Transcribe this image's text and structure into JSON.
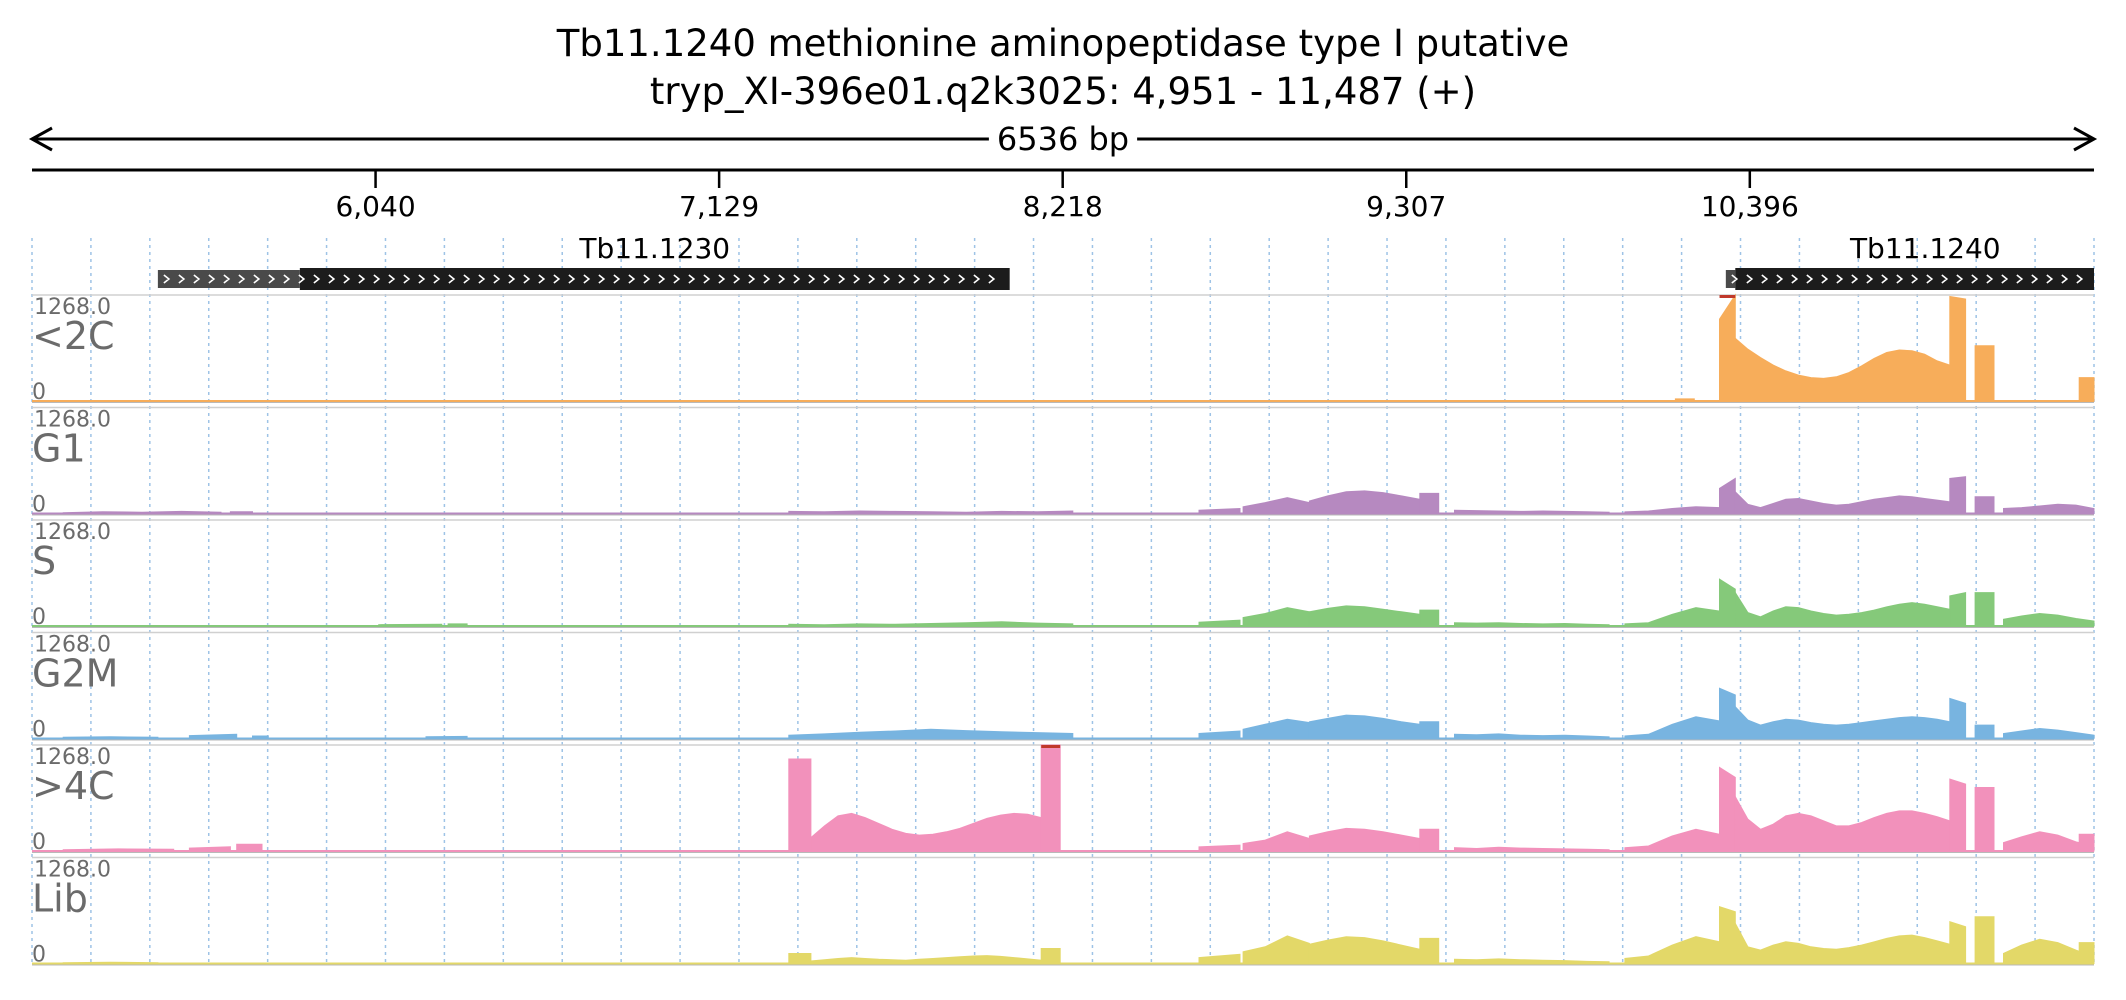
{
  "title": "Tb11.1240  methionine aminopeptidase  type I  putative",
  "subtitle": "tryp_XI-396e01.q2k3025: 4,951 - 11,487 (+)",
  "span_label": "6536 bp",
  "chart_data": {
    "type": "area",
    "x_range": [
      4951,
      11487
    ],
    "x_ticks": [
      6040,
      7129,
      8218,
      9307,
      10396
    ],
    "x_tick_labels": [
      "6,040",
      "7,129",
      "8,218",
      "9,307",
      "10,396"
    ],
    "y_range": [
      0,
      1268.0
    ],
    "y_max_label": "1268.0",
    "y_min_label": "0",
    "genes": [
      {
        "name": "Tb11.1230",
        "utr_start": 5350,
        "start": 5800,
        "end": 8050
      },
      {
        "name": "Tb11.1240",
        "utr_start": 10320,
        "start": 10350,
        "end": 11487
      }
    ],
    "tracks": [
      {
        "name": "<2C",
        "color": "#f7ad5a",
        "segments": [
          {
            "x0": 10160,
            "x1": 10220,
            "values": [
              25
            ]
          },
          {
            "x0": 10300,
            "x1": 10350,
            "values": [
              980,
              1268
            ]
          },
          {
            "x0": 10350,
            "x1": 11030,
            "values": [
              750,
              620,
              520,
              430,
              360,
              310,
              280,
              270,
              290,
              340,
              420,
              510,
              580,
              610,
              600,
              560,
              480,
              430
            ]
          },
          {
            "x0": 11030,
            "x1": 11080,
            "values": [
              1250,
              1220
            ]
          },
          {
            "x0": 11110,
            "x1": 11170,
            "values": [
              660
            ]
          },
          {
            "x0": 11440,
            "x1": 11487,
            "values": [
              280
            ]
          }
        ]
      },
      {
        "name": "G1",
        "color": "#b689c0",
        "segments": [
          {
            "x0": 5050,
            "x1": 5550,
            "values": [
              10,
              20,
              15,
              25,
              15
            ]
          },
          {
            "x0": 5580,
            "x1": 5650,
            "values": [
              20
            ]
          },
          {
            "x0": 7350,
            "x1": 8250,
            "values": [
              25,
              20,
              30,
              25,
              20,
              15,
              25,
              20,
              30
            ]
          },
          {
            "x0": 8650,
            "x1": 8780,
            "values": [
              40,
              60
            ]
          },
          {
            "x0": 8790,
            "x1": 9000,
            "values": [
              80,
              130,
              190,
              130
            ]
          },
          {
            "x0": 9000,
            "x1": 9350,
            "values": [
              150,
              210,
              260,
              270,
              250,
              210,
              170
            ]
          },
          {
            "x0": 9350,
            "x1": 9410,
            "values": [
              240
            ]
          },
          {
            "x0": 9460,
            "x1": 9950,
            "values": [
              40,
              35,
              30,
              25,
              30,
              25,
              20,
              15
            ]
          },
          {
            "x0": 10000,
            "x1": 10300,
            "values": [
              20,
              30,
              60,
              80,
              70
            ]
          },
          {
            "x0": 10300,
            "x1": 10350,
            "values": [
              300,
              420
            ]
          },
          {
            "x0": 10350,
            "x1": 11030,
            "values": [
              260,
              110,
              70,
              120,
              170,
              180,
              150,
              120,
              100,
              110,
              140,
              170,
              190,
              210,
              200,
              180,
              160,
              140
            ]
          },
          {
            "x0": 11030,
            "x1": 11080,
            "values": [
              420,
              440
            ]
          },
          {
            "x0": 11110,
            "x1": 11170,
            "values": [
              200
            ]
          },
          {
            "x0": 11200,
            "x1": 11487,
            "values": [
              60,
              70,
              90,
              110,
              100,
              60
            ]
          }
        ]
      },
      {
        "name": "S",
        "color": "#85c97a",
        "segments": [
          {
            "x0": 6050,
            "x1": 6250,
            "values": [
              15,
              20
            ]
          },
          {
            "x0": 6270,
            "x1": 6330,
            "values": [
              25
            ]
          },
          {
            "x0": 7350,
            "x1": 8250,
            "values": [
              20,
              15,
              25,
              20,
              30,
              40,
              50,
              35,
              25
            ]
          },
          {
            "x0": 8650,
            "x1": 8780,
            "values": [
              45,
              70
            ]
          },
          {
            "x0": 8790,
            "x1": 9000,
            "values": [
              100,
              150,
              220,
              170
            ]
          },
          {
            "x0": 9000,
            "x1": 9350,
            "values": [
              170,
              210,
              240,
              230,
              200,
              170,
              140
            ]
          },
          {
            "x0": 9350,
            "x1": 9410,
            "values": [
              190
            ]
          },
          {
            "x0": 9460,
            "x1": 9950,
            "values": [
              40,
              35,
              40,
              30,
              25,
              30,
              20,
              15
            ]
          },
          {
            "x0": 10000,
            "x1": 10300,
            "values": [
              25,
              40,
              140,
              220,
              180
            ]
          },
          {
            "x0": 10300,
            "x1": 10350,
            "values": [
              560,
              440
            ]
          },
          {
            "x0": 10350,
            "x1": 11030,
            "values": [
              400,
              160,
              110,
              180,
              230,
              220,
              180,
              150,
              130,
              140,
              160,
              190,
              230,
              260,
              280,
              260,
              230,
              200
            ]
          },
          {
            "x0": 11030,
            "x1": 11080,
            "values": [
              360,
              400
            ]
          },
          {
            "x0": 11110,
            "x1": 11170,
            "values": [
              400
            ]
          },
          {
            "x0": 11200,
            "x1": 11487,
            "values": [
              80,
              120,
              150,
              130,
              90,
              60
            ]
          }
        ]
      },
      {
        "name": "G2M",
        "color": "#78b4e0",
        "segments": [
          {
            "x0": 5050,
            "x1": 5350,
            "values": [
              15,
              20,
              15
            ]
          },
          {
            "x0": 5450,
            "x1": 5600,
            "values": [
              35,
              50
            ]
          },
          {
            "x0": 5650,
            "x1": 5700,
            "values": [
              30
            ]
          },
          {
            "x0": 6200,
            "x1": 6330,
            "values": [
              20,
              25
            ]
          },
          {
            "x0": 7350,
            "x1": 8250,
            "values": [
              40,
              55,
              75,
              90,
              110,
              95,
              80,
              70,
              60
            ]
          },
          {
            "x0": 8650,
            "x1": 8780,
            "values": [
              60,
              90
            ]
          },
          {
            "x0": 8790,
            "x1": 9000,
            "values": [
              110,
              170,
              230,
              190
            ]
          },
          {
            "x0": 9000,
            "x1": 9350,
            "values": [
              200,
              240,
              280,
              270,
              240,
              200,
              170
            ]
          },
          {
            "x0": 9350,
            "x1": 9410,
            "values": [
              200
            ]
          },
          {
            "x0": 9460,
            "x1": 9950,
            "values": [
              50,
              45,
              55,
              40,
              35,
              40,
              30,
              20
            ]
          },
          {
            "x0": 10000,
            "x1": 10300,
            "values": [
              30,
              50,
              170,
              260,
              210
            ]
          },
          {
            "x0": 10300,
            "x1": 10350,
            "values": [
              600,
              520
            ]
          },
          {
            "x0": 10350,
            "x1": 11030,
            "values": [
              380,
              220,
              160,
              200,
              230,
              220,
              190,
              170,
              160,
              170,
              190,
              210,
              230,
              250,
              260,
              250,
              230,
              200
            ]
          },
          {
            "x0": 11030,
            "x1": 11080,
            "values": [
              480,
              420
            ]
          },
          {
            "x0": 11110,
            "x1": 11170,
            "values": [
              160
            ]
          },
          {
            "x0": 11200,
            "x1": 11487,
            "values": [
              60,
              90,
              120,
              100,
              70,
              40
            ]
          }
        ]
      },
      {
        "name": ">4C",
        "color": "#f291bb",
        "segments": [
          {
            "x0": 5050,
            "x1": 5400,
            "values": [
              15,
              25,
              20
            ]
          },
          {
            "x0": 5450,
            "x1": 5580,
            "values": [
              35,
              50
            ]
          },
          {
            "x0": 5600,
            "x1": 5680,
            "values": [
              80
            ]
          },
          {
            "x0": 7350,
            "x1": 7420,
            "values": [
              1100
            ]
          },
          {
            "x0": 7420,
            "x1": 8150,
            "values": [
              160,
              300,
              420,
              450,
              400,
              330,
              260,
              210,
              190,
              200,
              230,
              270,
              330,
              390,
              430,
              450,
              440,
              400
            ]
          },
          {
            "x0": 8150,
            "x1": 8210,
            "values": [
              1268
            ]
          },
          {
            "x0": 8650,
            "x1": 8780,
            "values": [
              50,
              70
            ]
          },
          {
            "x0": 8790,
            "x1": 9000,
            "values": [
              90,
              130,
              230,
              150
            ]
          },
          {
            "x0": 9000,
            "x1": 9350,
            "values": [
              180,
              230,
              270,
              260,
              230,
              190,
              150
            ]
          },
          {
            "x0": 9350,
            "x1": 9410,
            "values": [
              260
            ]
          },
          {
            "x0": 9460,
            "x1": 9950,
            "values": [
              40,
              30,
              45,
              35,
              30,
              25,
              20,
              15
            ]
          },
          {
            "x0": 10000,
            "x1": 10300,
            "values": [
              40,
              60,
              180,
              260,
              200
            ]
          },
          {
            "x0": 10300,
            "x1": 10350,
            "values": [
              1000,
              880
            ]
          },
          {
            "x0": 10350,
            "x1": 11030,
            "values": [
              650,
              380,
              260,
              320,
              420,
              450,
              420,
              360,
              300,
              300,
              340,
              400,
              450,
              480,
              480,
              450,
              410,
              360
            ]
          },
          {
            "x0": 11030,
            "x1": 11080,
            "values": [
              860,
              800
            ]
          },
          {
            "x0": 11110,
            "x1": 11170,
            "values": [
              760
            ]
          },
          {
            "x0": 11200,
            "x1": 11487,
            "values": [
              100,
              170,
              230,
              190,
              110,
              60
            ]
          },
          {
            "x0": 11440,
            "x1": 11487,
            "values": [
              200
            ]
          }
        ]
      },
      {
        "name": "Lib",
        "color": "#e3d868",
        "segments": [
          {
            "x0": 5050,
            "x1": 5350,
            "values": [
              10,
              15,
              10
            ]
          },
          {
            "x0": 7350,
            "x1": 7420,
            "values": [
              120
            ]
          },
          {
            "x0": 7420,
            "x1": 8150,
            "values": [
              30,
              45,
              60,
              70,
              60,
              50,
              45,
              40,
              50,
              60,
              70,
              80,
              90,
              95,
              85,
              70,
              55,
              40
            ]
          },
          {
            "x0": 8150,
            "x1": 8210,
            "values": [
              180
            ]
          },
          {
            "x0": 8650,
            "x1": 8780,
            "values": [
              70,
              110
            ]
          },
          {
            "x0": 8790,
            "x1": 9000,
            "values": [
              140,
              200,
              330,
              240
            ]
          },
          {
            "x0": 9000,
            "x1": 9350,
            "values": [
              230,
              280,
              320,
              310,
              270,
              220,
              170
            ]
          },
          {
            "x0": 9350,
            "x1": 9410,
            "values": [
              300
            ]
          },
          {
            "x0": 9460,
            "x1": 9950,
            "values": [
              50,
              45,
              55,
              45,
              40,
              35,
              25,
              20
            ]
          },
          {
            "x0": 10000,
            "x1": 10300,
            "values": [
              60,
              90,
              220,
              320,
              260
            ]
          },
          {
            "x0": 10300,
            "x1": 10350,
            "values": [
              680,
              620
            ]
          },
          {
            "x0": 10350,
            "x1": 11030,
            "values": [
              480,
              200,
              160,
              220,
              260,
              240,
              200,
              180,
              170,
              190,
              220,
              260,
              300,
              330,
              340,
              310,
              270,
              230
            ]
          },
          {
            "x0": 11030,
            "x1": 11080,
            "values": [
              500,
              440
            ]
          },
          {
            "x0": 11110,
            "x1": 11170,
            "values": [
              560
            ]
          },
          {
            "x0": 11200,
            "x1": 11487,
            "values": [
              120,
              220,
              290,
              250,
              160,
              80
            ]
          },
          {
            "x0": 11440,
            "x1": 11487,
            "values": [
              250
            ]
          }
        ]
      }
    ]
  }
}
